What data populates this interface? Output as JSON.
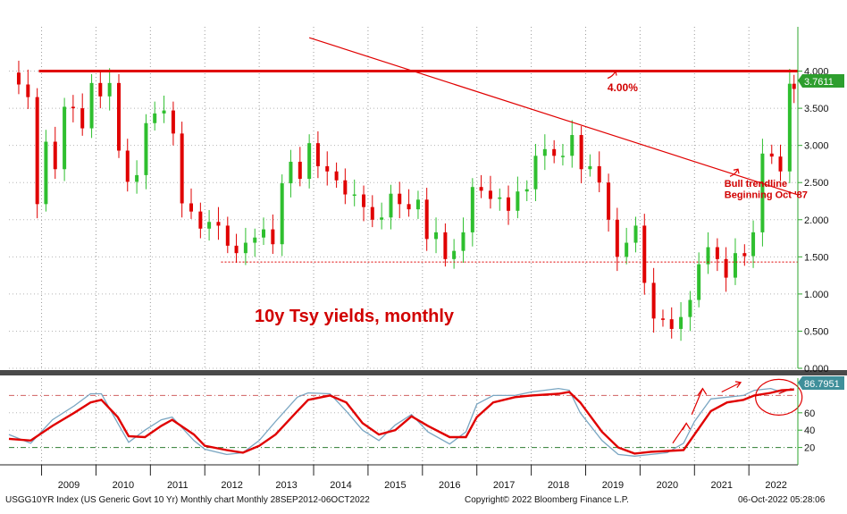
{
  "chart_data": [
    {
      "type": "candlestick",
      "title": "10y Tsy yields, monthly",
      "y_axis_position": "right",
      "ylim": [
        0,
        4.5
      ],
      "yticks": [
        "4.000",
        "3.500",
        "3.000",
        "2.500",
        "2.000",
        "1.500",
        "1.000",
        "0.500",
        "0.000"
      ],
      "last_value_label": "3.7611",
      "x_labels": [
        "2009",
        "2010",
        "2011",
        "2012",
        "2013",
        "2014",
        "2015",
        "2016",
        "2017",
        "2018",
        "2019",
        "2020",
        "2021",
        "2022"
      ],
      "x_range": [
        2008.4,
        2022.9
      ],
      "series_close": [
        [
          2008.42,
          3.98
        ],
        [
          2008.58,
          3.82
        ],
        [
          2008.75,
          3.65
        ],
        [
          2008.92,
          2.21
        ],
        [
          2009.08,
          3.05
        ],
        [
          2009.25,
          2.68
        ],
        [
          2009.42,
          3.52
        ],
        [
          2009.58,
          3.5
        ],
        [
          2009.75,
          3.23
        ],
        [
          2009.92,
          3.84
        ],
        [
          2010.08,
          3.66
        ],
        [
          2010.25,
          3.84
        ],
        [
          2010.42,
          2.93
        ],
        [
          2010.58,
          2.51
        ],
        [
          2010.75,
          2.6
        ],
        [
          2010.92,
          3.3
        ],
        [
          2011.08,
          3.43
        ],
        [
          2011.25,
          3.47
        ],
        [
          2011.42,
          3.16
        ],
        [
          2011.58,
          2.22
        ],
        [
          2011.75,
          2.11
        ],
        [
          2011.92,
          1.88
        ],
        [
          2012.08,
          1.97
        ],
        [
          2012.25,
          1.92
        ],
        [
          2012.42,
          1.65
        ],
        [
          2012.58,
          1.55
        ],
        [
          2012.75,
          1.69
        ],
        [
          2012.92,
          1.76
        ],
        [
          2013.08,
          1.87
        ],
        [
          2013.25,
          1.67
        ],
        [
          2013.42,
          2.49
        ],
        [
          2013.58,
          2.78
        ],
        [
          2013.75,
          2.55
        ],
        [
          2013.92,
          3.03
        ],
        [
          2014.08,
          2.72
        ],
        [
          2014.25,
          2.65
        ],
        [
          2014.42,
          2.53
        ],
        [
          2014.58,
          2.34
        ],
        [
          2014.75,
          2.34
        ],
        [
          2014.92,
          2.17
        ],
        [
          2015.08,
          2.0
        ],
        [
          2015.25,
          2.03
        ],
        [
          2015.42,
          2.35
        ],
        [
          2015.58,
          2.21
        ],
        [
          2015.75,
          2.14
        ],
        [
          2015.92,
          2.27
        ],
        [
          2016.08,
          1.74
        ],
        [
          2016.25,
          1.83
        ],
        [
          2016.42,
          1.47
        ],
        [
          2016.58,
          1.58
        ],
        [
          2016.75,
          1.83
        ],
        [
          2016.92,
          2.44
        ],
        [
          2017.08,
          2.39
        ],
        [
          2017.25,
          2.28
        ],
        [
          2017.42,
          2.3
        ],
        [
          2017.58,
          2.12
        ],
        [
          2017.75,
          2.38
        ],
        [
          2017.92,
          2.41
        ],
        [
          2018.08,
          2.86
        ],
        [
          2018.25,
          2.95
        ],
        [
          2018.42,
          2.86
        ],
        [
          2018.58,
          2.86
        ],
        [
          2018.75,
          3.14
        ],
        [
          2018.92,
          2.68
        ],
        [
          2019.08,
          2.72
        ],
        [
          2019.25,
          2.5
        ],
        [
          2019.42,
          2.0
        ],
        [
          2019.58,
          1.5
        ],
        [
          2019.75,
          1.69
        ],
        [
          2019.92,
          1.92
        ],
        [
          2020.08,
          1.15
        ],
        [
          2020.25,
          0.67
        ],
        [
          2020.42,
          0.66
        ],
        [
          2020.58,
          0.53
        ],
        [
          2020.75,
          0.69
        ],
        [
          2020.92,
          0.92
        ],
        [
          2021.08,
          1.4
        ],
        [
          2021.25,
          1.63
        ],
        [
          2021.42,
          1.47
        ],
        [
          2021.58,
          1.22
        ],
        [
          2021.75,
          1.55
        ],
        [
          2021.92,
          1.51
        ],
        [
          2022.08,
          1.83
        ],
        [
          2022.25,
          2.89
        ],
        [
          2022.42,
          2.85
        ],
        [
          2022.58,
          2.65
        ],
        [
          2022.75,
          3.83
        ],
        [
          2022.83,
          3.76
        ]
      ],
      "reference_lines": [
        {
          "type": "horizontal",
          "value": 4.0,
          "color": "#e00000",
          "style": "solid"
        },
        {
          "type": "horizontal",
          "value": 1.43,
          "color": "#e00000",
          "style": "dotted"
        },
        {
          "type": "trendline",
          "from": [
            2013.92,
            4.45
          ],
          "to": [
            2022.92,
            2.33
          ],
          "color": "#e00000"
        }
      ],
      "annotations": [
        {
          "text": "4.00%",
          "x": 2019.4,
          "y": 3.73
        },
        {
          "text": "Bull trendline",
          "x": 2021.55,
          "y": 2.44
        },
        {
          "text": "Beginning Oct '87",
          "x": 2021.55,
          "y": 2.29
        }
      ]
    },
    {
      "type": "line",
      "title": "",
      "y_axis_position": "right",
      "ylim": [
        0,
        100
      ],
      "yticks": [
        "60",
        "40",
        "20"
      ],
      "last_value_label": "86.7951",
      "reference_lines": [
        {
          "type": "horizontal",
          "value": 80,
          "color": "#d06060",
          "style": "dashed"
        },
        {
          "type": "horizontal",
          "value": 20,
          "color": "#2e7d32",
          "style": "dashed"
        }
      ],
      "series": [
        {
          "name": "",
          "color": "#e00000",
          "points": [
            [
              2008.4,
              30
            ],
            [
              2008.8,
              28
            ],
            [
              2009.2,
              45
            ],
            [
              2009.6,
              60
            ],
            [
              2009.9,
              72
            ],
            [
              2010.1,
              75
            ],
            [
              2010.4,
              55
            ],
            [
              2010.6,
              33
            ],
            [
              2010.9,
              32
            ],
            [
              2011.2,
              45
            ],
            [
              2011.4,
              52
            ],
            [
              2011.8,
              35
            ],
            [
              2012.0,
              22
            ],
            [
              2012.4,
              17
            ],
            [
              2012.7,
              14
            ],
            [
              2013.0,
              22
            ],
            [
              2013.3,
              35
            ],
            [
              2013.7,
              62
            ],
            [
              2013.9,
              75
            ],
            [
              2014.3,
              80
            ],
            [
              2014.6,
              72
            ],
            [
              2014.9,
              48
            ],
            [
              2015.2,
              35
            ],
            [
              2015.5,
              40
            ],
            [
              2015.8,
              56
            ],
            [
              2016.1,
              45
            ],
            [
              2016.5,
              32
            ],
            [
              2016.8,
              32
            ],
            [
              2017.0,
              55
            ],
            [
              2017.3,
              72
            ],
            [
              2017.7,
              78
            ],
            [
              2018.0,
              80
            ],
            [
              2018.5,
              82
            ],
            [
              2018.7,
              84
            ],
            [
              2018.9,
              72
            ],
            [
              2019.3,
              38
            ],
            [
              2019.6,
              20
            ],
            [
              2019.9,
              13
            ],
            [
              2020.2,
              15
            ],
            [
              2020.5,
              16
            ],
            [
              2020.8,
              17
            ],
            [
              2021.0,
              35
            ],
            [
              2021.3,
              62
            ],
            [
              2021.6,
              72
            ],
            [
              2021.9,
              75
            ],
            [
              2022.1,
              80
            ],
            [
              2022.4,
              83
            ],
            [
              2022.6,
              86
            ],
            [
              2022.83,
              86.8
            ]
          ]
        },
        {
          "name": "",
          "color": "#7aa6c2",
          "points": [
            [
              2008.4,
              35
            ],
            [
              2008.8,
              25
            ],
            [
              2009.2,
              52
            ],
            [
              2009.6,
              68
            ],
            [
              2009.9,
              82
            ],
            [
              2010.1,
              82
            ],
            [
              2010.4,
              48
            ],
            [
              2010.6,
              26
            ],
            [
              2010.9,
              40
            ],
            [
              2011.2,
              52
            ],
            [
              2011.4,
              55
            ],
            [
              2011.8,
              28
            ],
            [
              2012.0,
              18
            ],
            [
              2012.4,
              12
            ],
            [
              2012.7,
              14
            ],
            [
              2013.0,
              28
            ],
            [
              2013.3,
              50
            ],
            [
              2013.7,
              78
            ],
            [
              2013.9,
              83
            ],
            [
              2014.3,
              82
            ],
            [
              2014.6,
              62
            ],
            [
              2014.9,
              40
            ],
            [
              2015.2,
              28
            ],
            [
              2015.5,
              46
            ],
            [
              2015.8,
              58
            ],
            [
              2016.1,
              38
            ],
            [
              2016.5,
              24
            ],
            [
              2016.8,
              38
            ],
            [
              2017.0,
              70
            ],
            [
              2017.3,
              80
            ],
            [
              2017.7,
              80
            ],
            [
              2018.0,
              84
            ],
            [
              2018.5,
              88
            ],
            [
              2018.7,
              86
            ],
            [
              2018.9,
              60
            ],
            [
              2019.3,
              28
            ],
            [
              2019.6,
              12
            ],
            [
              2019.9,
              10
            ],
            [
              2020.2,
              12
            ],
            [
              2020.5,
              14
            ],
            [
              2020.8,
              25
            ],
            [
              2021.0,
              50
            ],
            [
              2021.3,
              76
            ],
            [
              2021.6,
              78
            ],
            [
              2021.9,
              80
            ],
            [
              2022.1,
              86
            ],
            [
              2022.4,
              88
            ],
            [
              2022.6,
              84
            ],
            [
              2022.83,
              88
            ]
          ]
        }
      ]
    }
  ],
  "footer": {
    "left": "USGG10YR Index (US Generic Govt 10 Yr) Monthly chart  Monthly 28SEP2012-06OCT2022",
    "center": "Copyright© 2022 Bloomberg Finance L.P.",
    "right": "06-Oct-2022 05:28:06"
  },
  "colors": {
    "up_candle": "#2fbf2f",
    "down_candle": "#e00000",
    "resistance": "#e00000",
    "value_tag_green": "#2e9e2e",
    "value_tag_teal": "#3f8f9a"
  }
}
